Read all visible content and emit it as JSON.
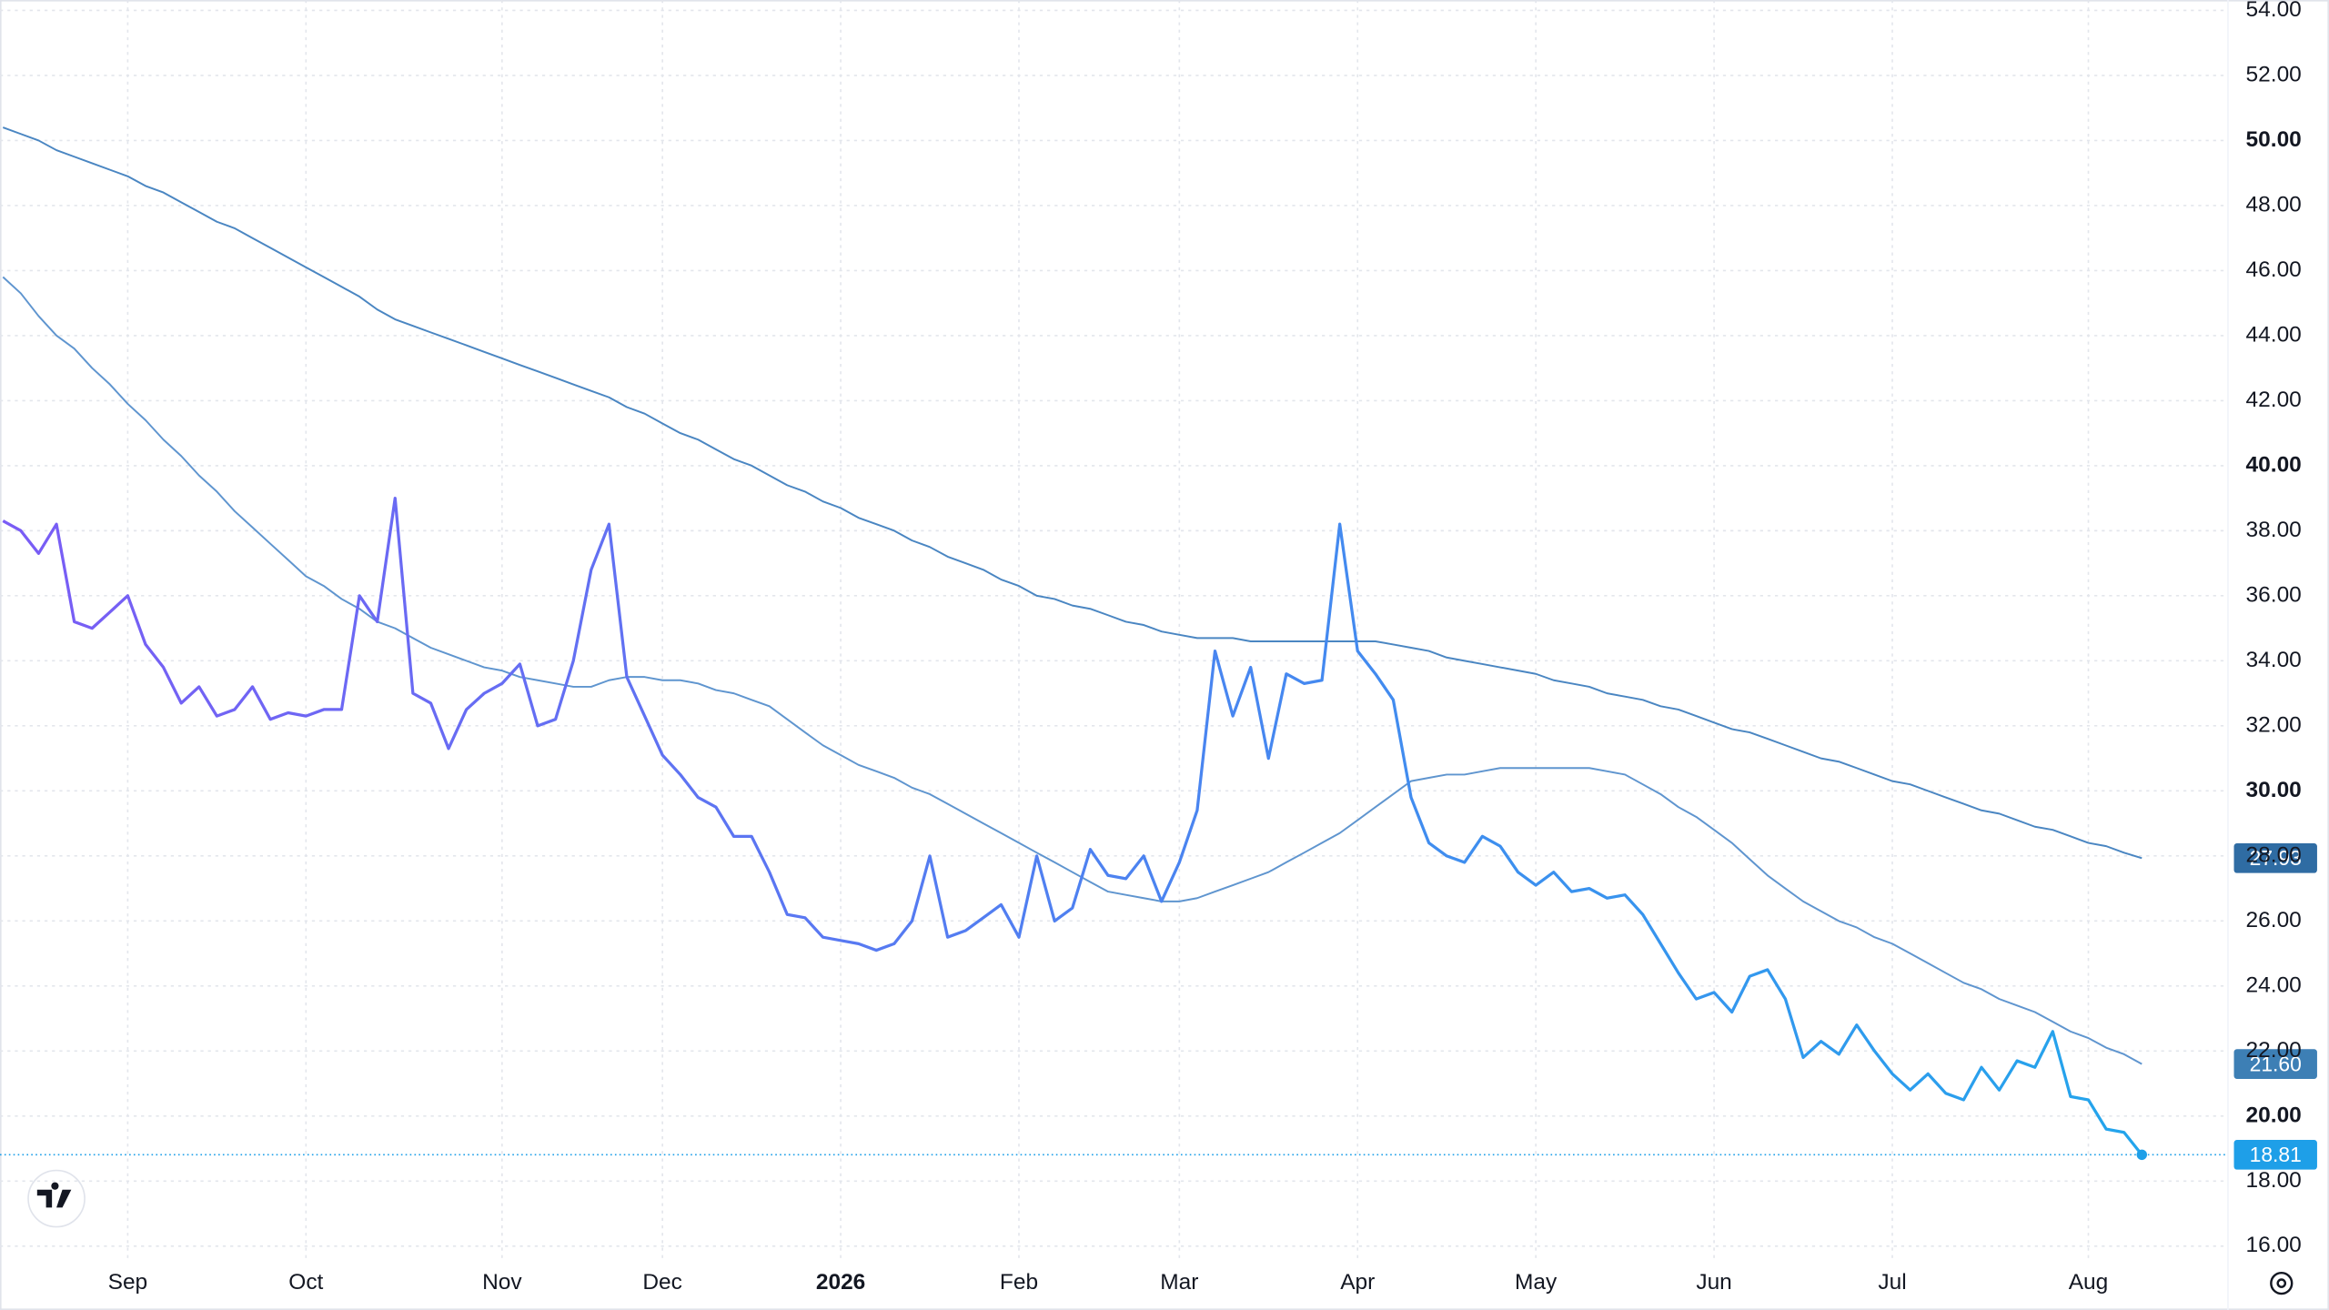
{
  "chart_data": {
    "type": "line",
    "categories": [
      null,
      null,
      null,
      null,
      null,
      null,
      null,
      "Sep",
      null,
      null,
      null,
      null,
      null,
      null,
      null,
      null,
      null,
      "Oct",
      null,
      null,
      null,
      null,
      null,
      null,
      null,
      null,
      null,
      null,
      "Nov",
      null,
      null,
      null,
      null,
      null,
      null,
      null,
      null,
      "Dec",
      null,
      null,
      null,
      null,
      null,
      null,
      null,
      null,
      null,
      "2026",
      null,
      null,
      null,
      null,
      null,
      null,
      null,
      null,
      null,
      "Feb",
      null,
      null,
      null,
      null,
      null,
      null,
      null,
      null,
      "Mar",
      null,
      null,
      null,
      null,
      null,
      null,
      null,
      null,
      null,
      "Apr",
      null,
      null,
      null,
      null,
      null,
      null,
      null,
      null,
      null,
      "May",
      null,
      null,
      null,
      null,
      null,
      null,
      null,
      null,
      null,
      "Jun",
      null,
      null,
      null,
      null,
      null,
      null,
      null,
      null,
      null,
      "Jul",
      null,
      null,
      null,
      null,
      null,
      null,
      null,
      null,
      null,
      null,
      "Aug",
      null,
      null,
      null
    ],
    "series": [
      {
        "color": "#7a5cf5",
        "color_end": "#23a5ec",
        "end_label": "18.81",
        "end_color": "#1e9fe8",
        "values": [
          38.3,
          38.0,
          37.3,
          38.2,
          35.2,
          35.0,
          35.5,
          36.0,
          34.5,
          33.8,
          32.7,
          33.2,
          32.3,
          32.5,
          33.2,
          32.2,
          32.4,
          32.3,
          32.5,
          32.5,
          36.0,
          35.2,
          39.0,
          33.0,
          32.7,
          31.3,
          32.5,
          33.0,
          33.3,
          33.9,
          32.0,
          32.2,
          34.0,
          36.8,
          38.2,
          33.5,
          32.3,
          31.1,
          30.5,
          29.8,
          29.5,
          28.6,
          28.6,
          27.5,
          26.2,
          26.1,
          25.5,
          25.4,
          25.3,
          25.1,
          25.3,
          26.0,
          28.0,
          25.5,
          25.7,
          26.1,
          26.5,
          25.5,
          28.0,
          26.0,
          26.4,
          28.2,
          27.4,
          27.3,
          28.0,
          26.6,
          27.8,
          29.4,
          34.3,
          32.3,
          33.8,
          31.0,
          33.6,
          33.3,
          33.4,
          38.2,
          34.3,
          33.6,
          32.8,
          29.8,
          28.4,
          28.0,
          27.8,
          28.6,
          28.3,
          27.5,
          27.1,
          27.5,
          26.9,
          27.0,
          26.7,
          26.8,
          26.2,
          25.3,
          24.4,
          23.6,
          23.8,
          23.2,
          24.3,
          24.5,
          23.6,
          21.8,
          22.3,
          21.9,
          22.8,
          22.0,
          21.3,
          20.8,
          21.3,
          20.7,
          20.5,
          21.5,
          20.8,
          21.7,
          21.5,
          22.6,
          20.6,
          20.5,
          19.6,
          19.5,
          18.81
        ]
      },
      {
        "color": "#5f95cf",
        "end_label": "21.60",
        "end_color": "#3d7fb5",
        "values": [
          45.8,
          45.3,
          44.6,
          44.0,
          43.6,
          43.0,
          42.5,
          41.9,
          41.4,
          40.8,
          40.3,
          39.7,
          39.2,
          38.6,
          38.1,
          37.6,
          37.1,
          36.6,
          36.3,
          35.9,
          35.6,
          35.2,
          35.0,
          34.7,
          34.4,
          34.2,
          34.0,
          33.8,
          33.7,
          33.5,
          33.4,
          33.3,
          33.2,
          33.2,
          33.4,
          33.5,
          33.5,
          33.4,
          33.4,
          33.3,
          33.1,
          33.0,
          32.8,
          32.6,
          32.2,
          31.8,
          31.4,
          31.1,
          30.8,
          30.6,
          30.4,
          30.1,
          29.9,
          29.6,
          29.3,
          29.0,
          28.7,
          28.4,
          28.1,
          27.8,
          27.5,
          27.2,
          26.9,
          26.8,
          26.7,
          26.6,
          26.6,
          26.7,
          26.9,
          27.1,
          27.3,
          27.5,
          27.8,
          28.1,
          28.4,
          28.7,
          29.1,
          29.5,
          29.9,
          30.3,
          30.4,
          30.5,
          30.5,
          30.6,
          30.7,
          30.7,
          30.7,
          30.7,
          30.7,
          30.7,
          30.6,
          30.5,
          30.2,
          29.9,
          29.5,
          29.2,
          28.8,
          28.4,
          27.9,
          27.4,
          27.0,
          26.6,
          26.3,
          26.0,
          25.8,
          25.5,
          25.3,
          25.0,
          24.7,
          24.4,
          24.1,
          23.9,
          23.6,
          23.4,
          23.2,
          22.9,
          22.6,
          22.4,
          22.1,
          21.9,
          21.6
        ]
      },
      {
        "color": "#4a86c2",
        "end_label": "27.93",
        "end_color": "#2f6ca3",
        "values": [
          50.4,
          50.2,
          50.0,
          49.7,
          49.5,
          49.3,
          49.1,
          48.9,
          48.6,
          48.4,
          48.1,
          47.8,
          47.5,
          47.3,
          47.0,
          46.7,
          46.4,
          46.1,
          45.8,
          45.5,
          45.2,
          44.8,
          44.5,
          44.3,
          44.1,
          43.9,
          43.7,
          43.5,
          43.3,
          43.1,
          42.9,
          42.7,
          42.5,
          42.3,
          42.1,
          41.8,
          41.6,
          41.3,
          41.0,
          40.8,
          40.5,
          40.2,
          40.0,
          39.7,
          39.4,
          39.2,
          38.9,
          38.7,
          38.4,
          38.2,
          38.0,
          37.7,
          37.5,
          37.2,
          37.0,
          36.8,
          36.5,
          36.3,
          36.0,
          35.9,
          35.7,
          35.6,
          35.4,
          35.2,
          35.1,
          34.9,
          34.8,
          34.7,
          34.7,
          34.7,
          34.6,
          34.6,
          34.6,
          34.6,
          34.6,
          34.6,
          34.6,
          34.6,
          34.5,
          34.4,
          34.3,
          34.1,
          34.0,
          33.9,
          33.8,
          33.7,
          33.6,
          33.4,
          33.3,
          33.2,
          33.0,
          32.9,
          32.8,
          32.6,
          32.5,
          32.3,
          32.1,
          31.9,
          31.8,
          31.6,
          31.4,
          31.2,
          31.0,
          30.9,
          30.7,
          30.5,
          30.3,
          30.2,
          30.0,
          29.8,
          29.6,
          29.4,
          29.3,
          29.1,
          28.9,
          28.8,
          28.6,
          28.4,
          28.3,
          28.1,
          27.93
        ]
      }
    ],
    "ylim": [
      16,
      54
    ],
    "yticks": [
      {
        "value": 16,
        "label": "16.00"
      },
      {
        "value": 18,
        "label": "18.00"
      },
      {
        "value": 20,
        "label": "20.00"
      },
      {
        "value": 22,
        "label": "22.00"
      },
      {
        "value": 24,
        "label": "24.00"
      },
      {
        "value": 26,
        "label": "26.00"
      },
      {
        "value": 28,
        "label": "28.00"
      },
      {
        "value": 30,
        "label": "30.00"
      },
      {
        "value": 32,
        "label": "32.00"
      },
      {
        "value": 34,
        "label": "34.00"
      },
      {
        "value": 36,
        "label": "36.00"
      },
      {
        "value": 38,
        "label": "38.00"
      },
      {
        "value": 40,
        "label": "40.00"
      },
      {
        "value": 42,
        "label": "42.00"
      },
      {
        "value": 44,
        "label": "44.00"
      },
      {
        "value": 46,
        "label": "46.00"
      },
      {
        "value": 48,
        "label": "48.00"
      },
      {
        "value": 50,
        "label": "50.00"
      },
      {
        "value": 52,
        "label": "52.00"
      },
      {
        "value": 54,
        "label": "54.00"
      }
    ],
    "y_axis_side": "right",
    "grid": true
  }
}
